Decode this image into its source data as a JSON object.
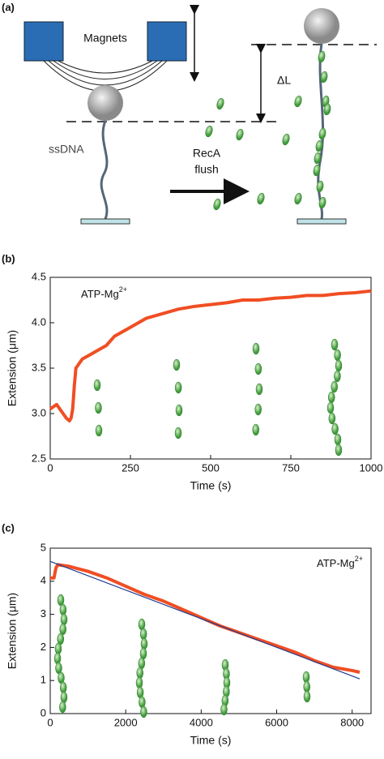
{
  "diagram": {
    "panel_label": "(a)",
    "magnets": "Magnets",
    "ssdna": "ssDNA",
    "flush_1": "RecA",
    "flush_2": "flush",
    "delta": "ΔL"
  },
  "chart_data": [
    {
      "type": "line",
      "panel_label": "(b)",
      "x_label": "Time (s)",
      "y_label": "Extension (μm)",
      "annotation": {
        "text": "ATP-Mg",
        "sup": "2+"
      },
      "xlim": [
        0,
        1000
      ],
      "xticks": [
        0,
        250,
        500,
        750,
        1000
      ],
      "ylim": [
        2.5,
        4.5
      ],
      "yticks": [
        2.5,
        {
          "value": 3,
          "label": "3.0"
        },
        3.5,
        {
          "value": 4,
          "label": "4.0"
        },
        4.5
      ],
      "series": [
        {
          "color": "#f04e23",
          "x": [
            0,
            20,
            40,
            50,
            60,
            65,
            70,
            75,
            80,
            90,
            100,
            125,
            150,
            175,
            200,
            250,
            300,
            350,
            400,
            450,
            500,
            550,
            600,
            650,
            700,
            750,
            800,
            850,
            900,
            950,
            1000
          ],
          "values": [
            3.05,
            3.1,
            3.0,
            2.95,
            2.92,
            2.95,
            3.05,
            3.3,
            3.5,
            3.55,
            3.6,
            3.65,
            3.7,
            3.75,
            3.85,
            3.95,
            4.05,
            4.1,
            4.15,
            4.18,
            4.2,
            4.22,
            4.25,
            4.25,
            4.27,
            4.28,
            4.3,
            4.3,
            4.32,
            4.33,
            4.35
          ]
        }
      ]
    },
    {
      "type": "line",
      "panel_label": "(c)",
      "x_label": "Time (s)",
      "y_label": "Extension (μm)",
      "annotation": {
        "text": "ATP-Mg",
        "sup": "2+"
      },
      "xlim": [
        0,
        8500
      ],
      "xticks": [
        0,
        2000,
        4000,
        6000,
        8000
      ],
      "ylim": [
        0,
        5
      ],
      "yticks": [
        0,
        1,
        2,
        3,
        4,
        5
      ],
      "series": [
        {
          "color": "#f04e23",
          "x": [
            0,
            100,
            150,
            200,
            500,
            1000,
            1500,
            2000,
            2500,
            3000,
            3500,
            4000,
            4500,
            5000,
            5500,
            6000,
            6500,
            7000,
            7500,
            8000,
            8200
          ],
          "values": [
            4.1,
            4.1,
            4.4,
            4.5,
            4.45,
            4.3,
            4.1,
            3.85,
            3.6,
            3.4,
            3.15,
            2.9,
            2.65,
            2.45,
            2.25,
            2.05,
            1.85,
            1.6,
            1.4,
            1.3,
            1.25
          ]
        },
        {
          "color": "#1f3a93",
          "x": [
            0,
            8200
          ],
          "values": [
            4.6,
            1.05
          ]
        }
      ]
    }
  ]
}
